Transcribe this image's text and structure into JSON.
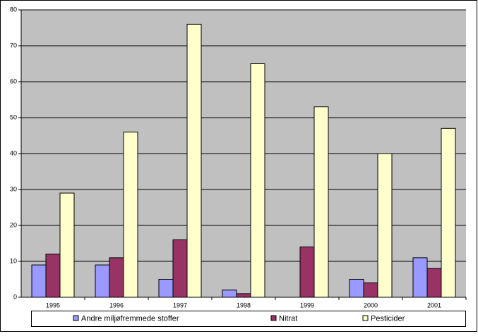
{
  "chart_data": {
    "type": "bar",
    "categories": [
      "1995",
      "1996",
      "1997",
      "1998",
      "1999",
      "2000",
      "2001"
    ],
    "series": [
      {
        "name": "Andre miljøfremmede stoffer",
        "color": "#9999ff",
        "values": [
          9,
          9,
          5,
          2,
          0,
          5,
          11
        ]
      },
      {
        "name": "Nitrat",
        "color": "#993366",
        "values": [
          12,
          11,
          16,
          1,
          14,
          4,
          8
        ]
      },
      {
        "name": "Pesticider",
        "color": "#ffffcc",
        "values": [
          29,
          46,
          76,
          65,
          53,
          40,
          47
        ]
      }
    ],
    "ylim": [
      0,
      80
    ],
    "yticks": [
      0,
      10,
      20,
      30,
      40,
      50,
      60,
      70,
      80
    ],
    "grid": true,
    "legend": "bottom"
  }
}
